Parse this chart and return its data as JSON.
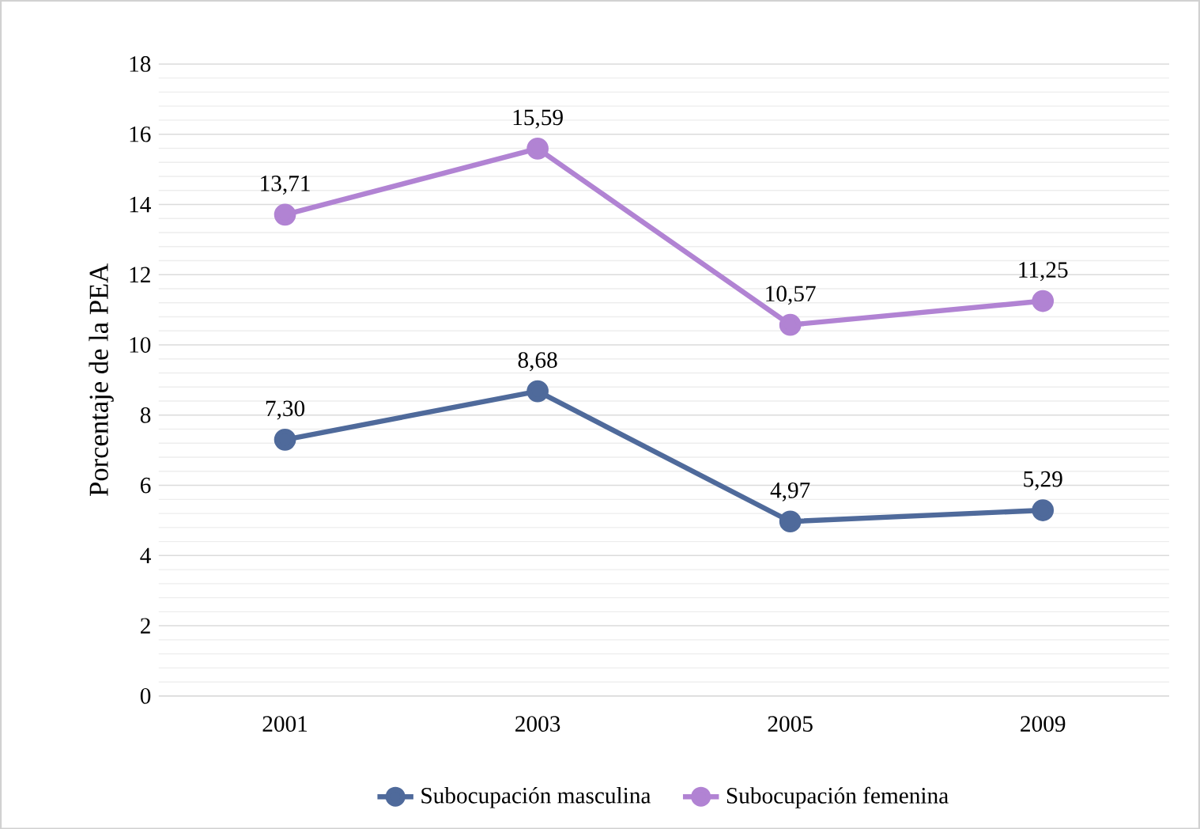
{
  "chart_data": {
    "type": "line",
    "ylabel": "Porcentaje de la PEA",
    "categories": [
      "2001",
      "2003",
      "2005",
      "2009"
    ],
    "series": [
      {
        "name": "Subocupación masculina",
        "color": "#4f6a9b",
        "values": [
          7.3,
          8.68,
          4.97,
          5.29
        ],
        "value_labels": [
          "7,30",
          "8,68",
          "4,97",
          "5,29"
        ]
      },
      {
        "name": "Subocupación femenina",
        "color": "#b183d3",
        "values": [
          13.71,
          15.59,
          10.57,
          11.25
        ],
        "value_labels": [
          "13,71",
          "15,59",
          "10,57",
          "11,25"
        ]
      }
    ],
    "ylim": [
      0,
      18
    ],
    "yticks": [
      0,
      2,
      4,
      6,
      8,
      10,
      12,
      14,
      16,
      18
    ],
    "grid": "y",
    "legend": "bottom",
    "marker": "circle",
    "line_style": "solid"
  }
}
